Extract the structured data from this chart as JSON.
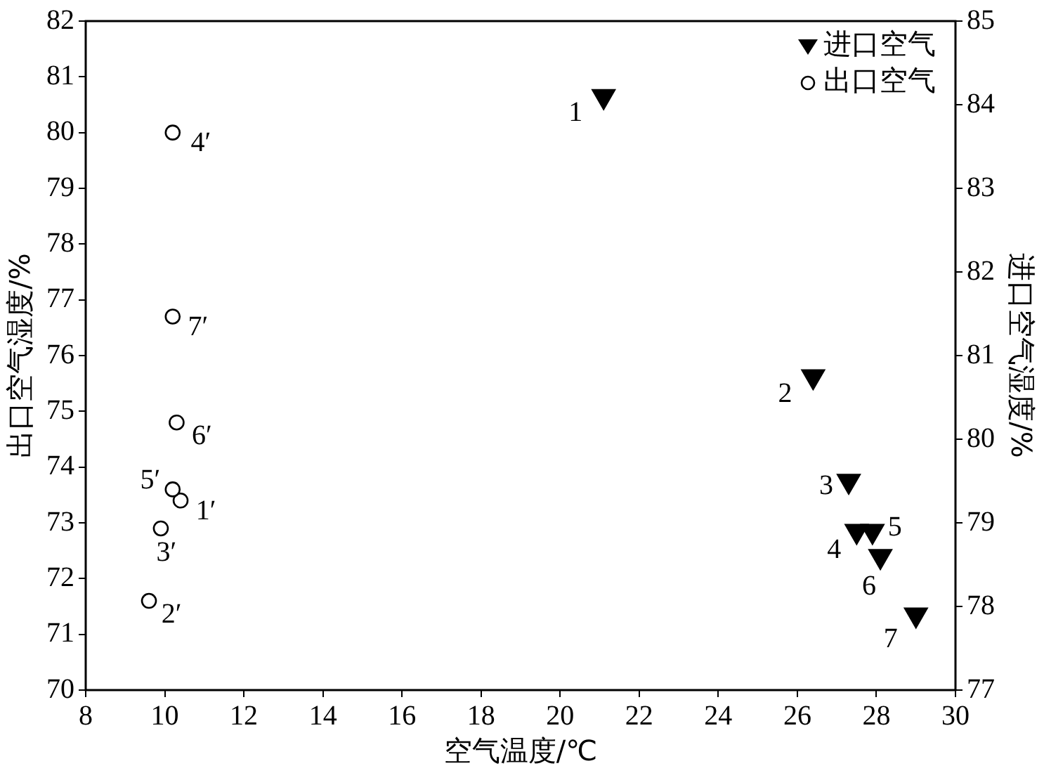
{
  "chart_data": {
    "type": "scatter",
    "xlabel": "空气温度/℃",
    "ylabel": "出口空气湿度/%",
    "y2label": "进口空气湿度/%",
    "xlim": [
      8,
      30
    ],
    "xticks": [
      8,
      10,
      12,
      14,
      16,
      18,
      20,
      22,
      24,
      26,
      28,
      30
    ],
    "ylim": [
      70,
      82
    ],
    "yticks": [
      70,
      71,
      72,
      73,
      74,
      75,
      76,
      77,
      78,
      79,
      80,
      81,
      82
    ],
    "y2lim": [
      77,
      85
    ],
    "y2ticks": [
      77,
      78,
      79,
      80,
      81,
      82,
      83,
      84,
      85
    ],
    "grid": false,
    "legend": "top right",
    "marker": "circle",
    "series": [
      {
        "name": "进口空气",
        "color": "#000000",
        "marker": "triangle",
        "axis": "y2",
        "x": [
          21.1,
          26.4,
          27.3,
          27.5,
          27.9,
          28.1,
          29.0
        ],
        "values": [
          84.1,
          80.75,
          79.5,
          78.9,
          78.9,
          78.6,
          77.9
        ]
      },
      {
        "name": "出口空气",
        "color": "#000000",
        "x": [
          10.4,
          9.6,
          9.9,
          10.2,
          10.2,
          10.3,
          10.2
        ],
        "values": [
          73.4,
          71.6,
          72.9,
          80.0,
          73.6,
          74.8,
          76.7
        ]
      }
    ],
    "annotations": [
      {
        "text": "1",
        "x": 21.1,
        "y": 80.6
      },
      {
        "text": "2",
        "x": 26.4,
        "y": 75.6
      },
      {
        "text": "3",
        "x": 27.3,
        "y": 73.7
      },
      {
        "text": "4",
        "x": 27.5,
        "y": 72.8
      },
      {
        "text": "5",
        "x": 27.9,
        "y": 72.8
      },
      {
        "text": "6",
        "x": 28.1,
        "y": 72.4
      },
      {
        "text": "7",
        "x": 29.0,
        "y": 71.3
      },
      {
        "text": "1′",
        "x": 10.4,
        "y": 73.4
      },
      {
        "text": "2′",
        "x": 9.6,
        "y": 71.6
      },
      {
        "text": "3′",
        "x": 9.9,
        "y": 72.9
      },
      {
        "text": "4′",
        "x": 10.2,
        "y": 80.0
      },
      {
        "text": "5′",
        "x": 10.2,
        "y": 73.6
      },
      {
        "text": "6′",
        "x": 10.3,
        "y": 74.8
      },
      {
        "text": "7′",
        "x": 10.2,
        "y": 76.7
      }
    ]
  }
}
